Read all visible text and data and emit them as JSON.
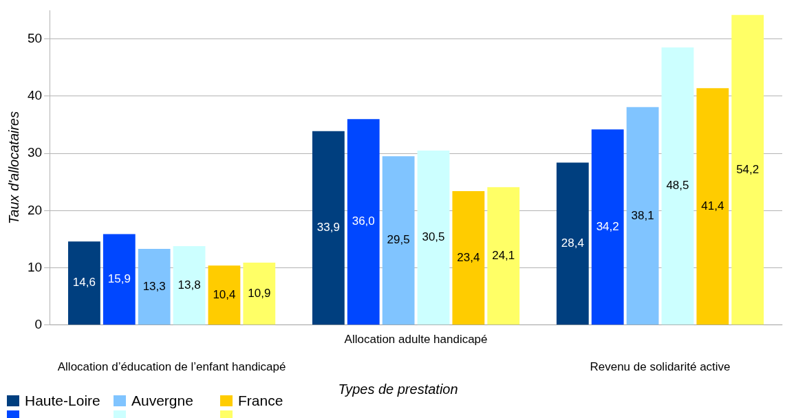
{
  "chart_data": {
    "type": "bar",
    "xlabel": "Types de prestation",
    "ylabel": "Taux d'allocataires",
    "categories": [
      "Allocation d’éducation de l’enfant handicapé",
      "Allocation adulte handicapé",
      "Revenu de solidarité active"
    ],
    "series": [
      {
        "name": "Haute-Loire",
        "color": "#003f7f",
        "values": [
          14.6,
          33.9,
          28.4
        ],
        "value_labels": [
          "14,6",
          "33,9",
          "28,4"
        ]
      },
      {
        "color": "#0047ff",
        "values": [
          15.9,
          36.0,
          34.2
        ],
        "value_labels": [
          "15,9",
          "36,0",
          "34,2"
        ]
      },
      {
        "name": "Auvergne",
        "color": "#80c4ff",
        "values": [
          13.3,
          29.5,
          38.1
        ],
        "value_labels": [
          "13,3",
          "29,5",
          "38,1"
        ]
      },
      {
        "color": "#ccffff",
        "values": [
          13.8,
          30.5,
          48.5
        ],
        "value_labels": [
          "13,8",
          "30,5",
          "48,5"
        ]
      },
      {
        "name": "France",
        "color": "#ffcc00",
        "values": [
          10.4,
          23.4,
          41.4
        ],
        "value_labels": [
          "10,4",
          "23,4",
          "41,4"
        ]
      },
      {
        "color": "#ffff66",
        "values": [
          10.9,
          24.1,
          54.2
        ],
        "value_labels": [
          "10,9",
          "24,1",
          "54,2"
        ]
      }
    ],
    "ylim": [
      0,
      55
    ],
    "yticks": [
      0,
      10,
      20,
      30,
      40,
      50
    ],
    "grid": "y",
    "legend": "bottom left"
  }
}
